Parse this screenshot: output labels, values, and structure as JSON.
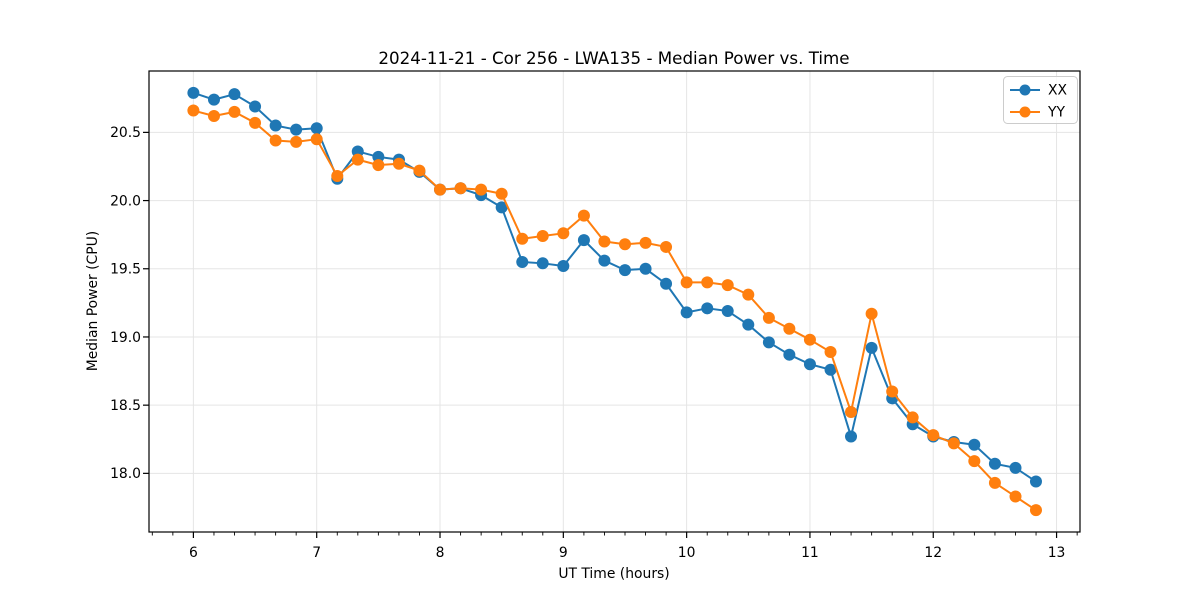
{
  "chart_data": {
    "type": "line",
    "title": "2024-11-21 - Cor 256 - LWA135 - Median Power vs. Time",
    "xlabel": "UT Time (hours)",
    "ylabel": "Median Power (CPU)",
    "grid": true,
    "legend_position": "upper right",
    "xlim": [
      5.64,
      13.19
    ],
    "ylim": [
      17.57,
      20.95
    ],
    "xticks": [
      6,
      7,
      8,
      9,
      10,
      11,
      12,
      13
    ],
    "xtick_labels": [
      "6",
      "7",
      "8",
      "9",
      "10",
      "11",
      "12",
      "13"
    ],
    "x_minor_step": 0.16667,
    "yticks": [
      18.0,
      18.5,
      19.0,
      19.5,
      20.0,
      20.5
    ],
    "ytick_labels": [
      "18.0",
      "18.5",
      "19.0",
      "19.5",
      "20.0",
      "20.5"
    ],
    "x": [
      6.0,
      6.167,
      6.333,
      6.5,
      6.667,
      6.833,
      7.0,
      7.167,
      7.333,
      7.5,
      7.667,
      7.833,
      8.0,
      8.167,
      8.333,
      8.5,
      8.667,
      8.833,
      9.0,
      9.167,
      9.333,
      9.5,
      9.667,
      9.833,
      10.0,
      10.167,
      10.333,
      10.5,
      10.667,
      10.833,
      11.0,
      11.167,
      11.333,
      11.5,
      11.667,
      11.833,
      12.0,
      12.167,
      12.333,
      12.5,
      12.667,
      12.833
    ],
    "series": [
      {
        "name": "XX",
        "color": "#1f77b4",
        "marker": "circle",
        "values": [
          20.79,
          20.74,
          20.78,
          20.69,
          20.55,
          20.52,
          20.53,
          20.16,
          20.36,
          20.32,
          20.3,
          20.21,
          20.08,
          20.09,
          20.04,
          19.95,
          19.55,
          19.54,
          19.52,
          19.71,
          19.56,
          19.49,
          19.5,
          19.39,
          19.18,
          19.21,
          19.19,
          19.09,
          18.96,
          18.87,
          18.8,
          18.76,
          18.27,
          18.92,
          18.55,
          18.36,
          18.27,
          18.23,
          18.21,
          18.07,
          18.04,
          17.94
        ]
      },
      {
        "name": "YY",
        "color": "#ff7f0e",
        "marker": "circle",
        "values": [
          20.66,
          20.62,
          20.65,
          20.57,
          20.44,
          20.43,
          20.45,
          20.18,
          20.3,
          20.26,
          20.27,
          20.22,
          20.08,
          20.09,
          20.08,
          20.05,
          19.72,
          19.74,
          19.76,
          19.89,
          19.7,
          19.68,
          19.69,
          19.66,
          19.4,
          19.4,
          19.38,
          19.31,
          19.14,
          19.06,
          18.98,
          18.89,
          18.45,
          19.17,
          18.6,
          18.41,
          18.28,
          18.22,
          18.09,
          17.93,
          17.83,
          17.73
        ]
      }
    ]
  }
}
